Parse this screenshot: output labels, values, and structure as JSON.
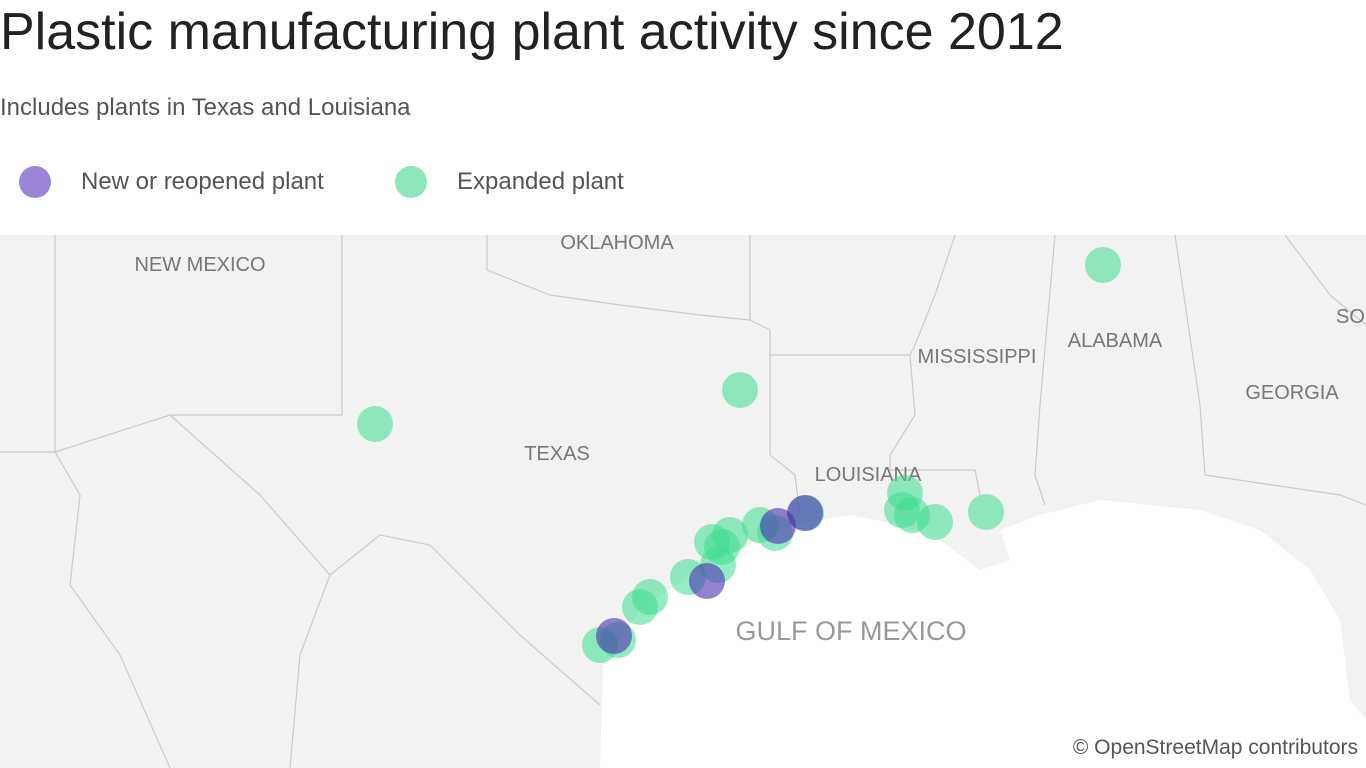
{
  "header": {
    "title": "Plastic manufacturing plant activity since 2012",
    "subtitle": "Includes plants in Texas and Louisiana"
  },
  "legend": {
    "items": [
      "New or reopened plant",
      "Expanded plant"
    ]
  },
  "map": {
    "labels": [
      "NEW MEXICO",
      "OKLAHOMA",
      "TEXAS",
      "LOUISIANA",
      "MISSISSIPPI",
      "ALABAMA",
      "GEORGIA",
      "GULF OF MEXICO",
      "SOU"
    ],
    "attribution": "© OpenStreetMap contributors"
  }
}
